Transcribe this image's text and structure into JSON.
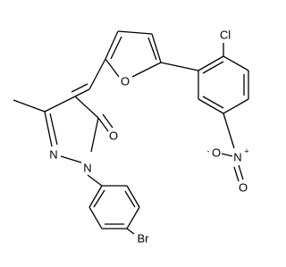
{
  "atoms": [
    {
      "label": "Cl"
    },
    {
      "label": "O"
    },
    {
      "label": "O"
    },
    {
      "label": "N"
    },
    {
      "label": "N"
    },
    {
      "label": "N",
      "charge": "+"
    },
    {
      "label": "O",
      "charge": "-"
    },
    {
      "label": "O"
    },
    {
      "label": "Br"
    }
  ]
}
